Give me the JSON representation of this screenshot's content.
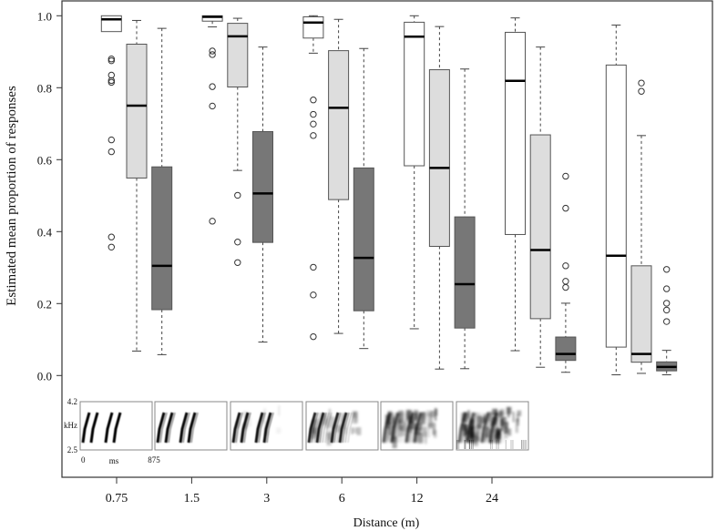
{
  "chart_data": {
    "type": "boxplot",
    "title": "",
    "xlabel": "Distance (m)",
    "ylabel": "Estimated mean proportion of responses",
    "ylim": [
      0,
      1
    ],
    "yticks": [
      "0.0",
      "0.2",
      "0.4",
      "0.6",
      "0.8",
      "1.0"
    ],
    "ytick_values": [
      0,
      0.2,
      0.4,
      0.6,
      0.8,
      1.0
    ],
    "categories": [
      "0.75",
      "1.5",
      "3",
      "6",
      "12",
      "24"
    ],
    "series_colors": [
      "#ffffff",
      "#dddddd",
      "#777777"
    ],
    "groups": [
      {
        "distance": "0.75",
        "boxes": [
          {
            "low": 0.956,
            "q1": 0.956,
            "median": 0.99,
            "q3": 1.0,
            "high": 1.0,
            "outliers": [
              0.88,
              0.875,
              0.835,
              0.82,
              0.815,
              0.655,
              0.622,
              0.385,
              0.357
            ]
          },
          {
            "low": 0.068,
            "q1": 0.549,
            "median": 0.75,
            "q3": 0.921,
            "high": 0.987,
            "outliers": []
          },
          {
            "low": 0.058,
            "q1": 0.183,
            "median": 0.305,
            "q3": 0.58,
            "high": 0.965,
            "outliers": []
          }
        ]
      },
      {
        "distance": "1.5",
        "boxes": [
          {
            "low": 0.969,
            "q1": 0.985,
            "median": 0.997,
            "q3": 1.0,
            "high": 1.0,
            "outliers": [
              0.902,
              0.892,
              0.803,
              0.749,
              0.429
            ]
          },
          {
            "low": 0.57,
            "q1": 0.802,
            "median": 0.943,
            "q3": 0.979,
            "high": 0.993,
            "outliers": [
              0.501,
              0.371,
              0.314
            ]
          },
          {
            "low": 0.093,
            "q1": 0.37,
            "median": 0.506,
            "q3": 0.678,
            "high": 0.913,
            "outliers": []
          }
        ]
      },
      {
        "distance": "3",
        "boxes": [
          {
            "low": 0.896,
            "q1": 0.938,
            "median": 0.981,
            "q3": 0.997,
            "high": 1.0,
            "outliers": [
              0.766,
              0.726,
              0.699,
              0.667,
              0.301,
              0.224,
              0.108
            ]
          },
          {
            "low": 0.117,
            "q1": 0.489,
            "median": 0.744,
            "q3": 0.903,
            "high": 0.99,
            "outliers": []
          },
          {
            "low": 0.075,
            "q1": 0.18,
            "median": 0.327,
            "q3": 0.577,
            "high": 0.909,
            "outliers": []
          }
        ]
      },
      {
        "distance": "6",
        "boxes": [
          {
            "low": 0.13,
            "q1": 0.583,
            "median": 0.942,
            "q3": 0.982,
            "high": 1.0,
            "outliers": []
          },
          {
            "low": 0.018,
            "q1": 0.359,
            "median": 0.577,
            "q3": 0.85,
            "high": 0.97,
            "outliers": []
          },
          {
            "low": 0.019,
            "q1": 0.132,
            "median": 0.254,
            "q3": 0.441,
            "high": 0.852,
            "outliers": []
          }
        ]
      },
      {
        "distance": "12",
        "boxes": [
          {
            "low": 0.069,
            "q1": 0.392,
            "median": 0.819,
            "q3": 0.954,
            "high": 0.994,
            "outliers": []
          },
          {
            "low": 0.023,
            "q1": 0.158,
            "median": 0.349,
            "q3": 0.669,
            "high": 0.913,
            "outliers": []
          },
          {
            "low": 0.009,
            "q1": 0.042,
            "median": 0.06,
            "q3": 0.107,
            "high": 0.201,
            "outliers": [
              0.554,
              0.465,
              0.305,
              0.262,
              0.245
            ]
          }
        ]
      },
      {
        "distance": "24",
        "boxes": [
          {
            "low": 0.002,
            "q1": 0.079,
            "median": 0.333,
            "q3": 0.863,
            "high": 0.974,
            "outliers": []
          },
          {
            "low": 0.006,
            "q1": 0.037,
            "median": 0.06,
            "q3": 0.305,
            "high": 0.667,
            "outliers": [
              0.813,
              0.79
            ]
          },
          {
            "low": 0.002,
            "q1": 0.013,
            "median": 0.024,
            "q3": 0.038,
            "high": 0.07,
            "outliers": [
              0.295,
              0.241,
              0.201,
              0.182,
              0.15
            ]
          }
        ]
      }
    ],
    "spectrogram_inset": {
      "freq_top": "4.2",
      "freq_bottom": "2.5",
      "freq_unit": "kHz",
      "time_start": "0",
      "time_end": "875",
      "time_unit": "ms",
      "degradation_levels": [
        0,
        0.1,
        0.25,
        0.5,
        0.8,
        1.0
      ]
    }
  }
}
